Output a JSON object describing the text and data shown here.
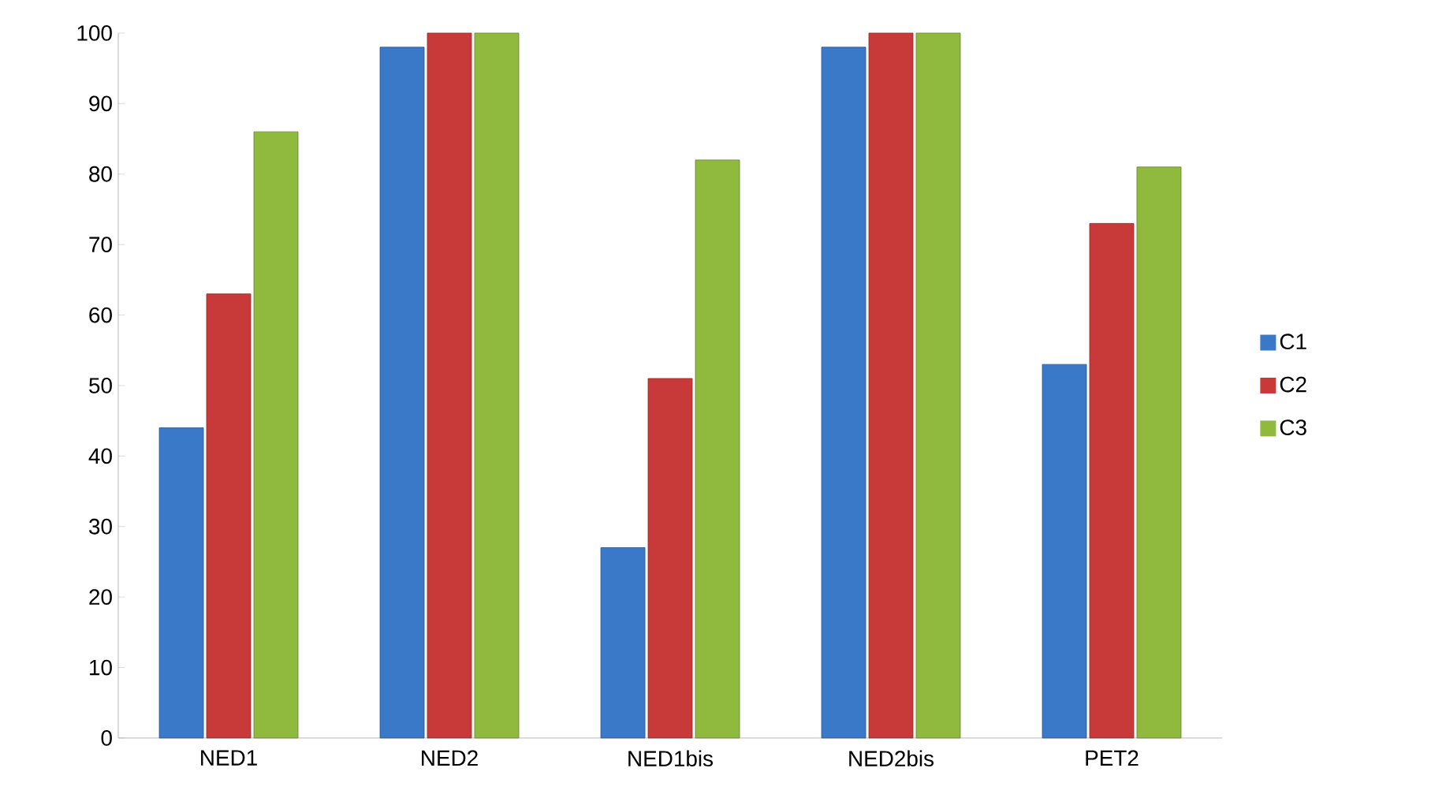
{
  "chart_data": {
    "type": "bar",
    "categories": [
      "NED1",
      "NED2",
      "NED1bis",
      "NED2bis",
      "PET2"
    ],
    "series": [
      {
        "name": "C1",
        "color": "#3a78c8",
        "values": [
          44,
          98,
          27,
          98,
          53
        ]
      },
      {
        "name": "C2",
        "color": "#c83a3a",
        "values": [
          63,
          100,
          51,
          100,
          73
        ]
      },
      {
        "name": "C3",
        "color": "#8fba3e",
        "values": [
          86,
          100,
          82,
          100,
          81
        ]
      }
    ],
    "ylim": [
      0,
      100
    ],
    "yticks": [
      0,
      10,
      20,
      30,
      40,
      50,
      60,
      70,
      80,
      90,
      100
    ],
    "grid": false,
    "legend": "right"
  }
}
